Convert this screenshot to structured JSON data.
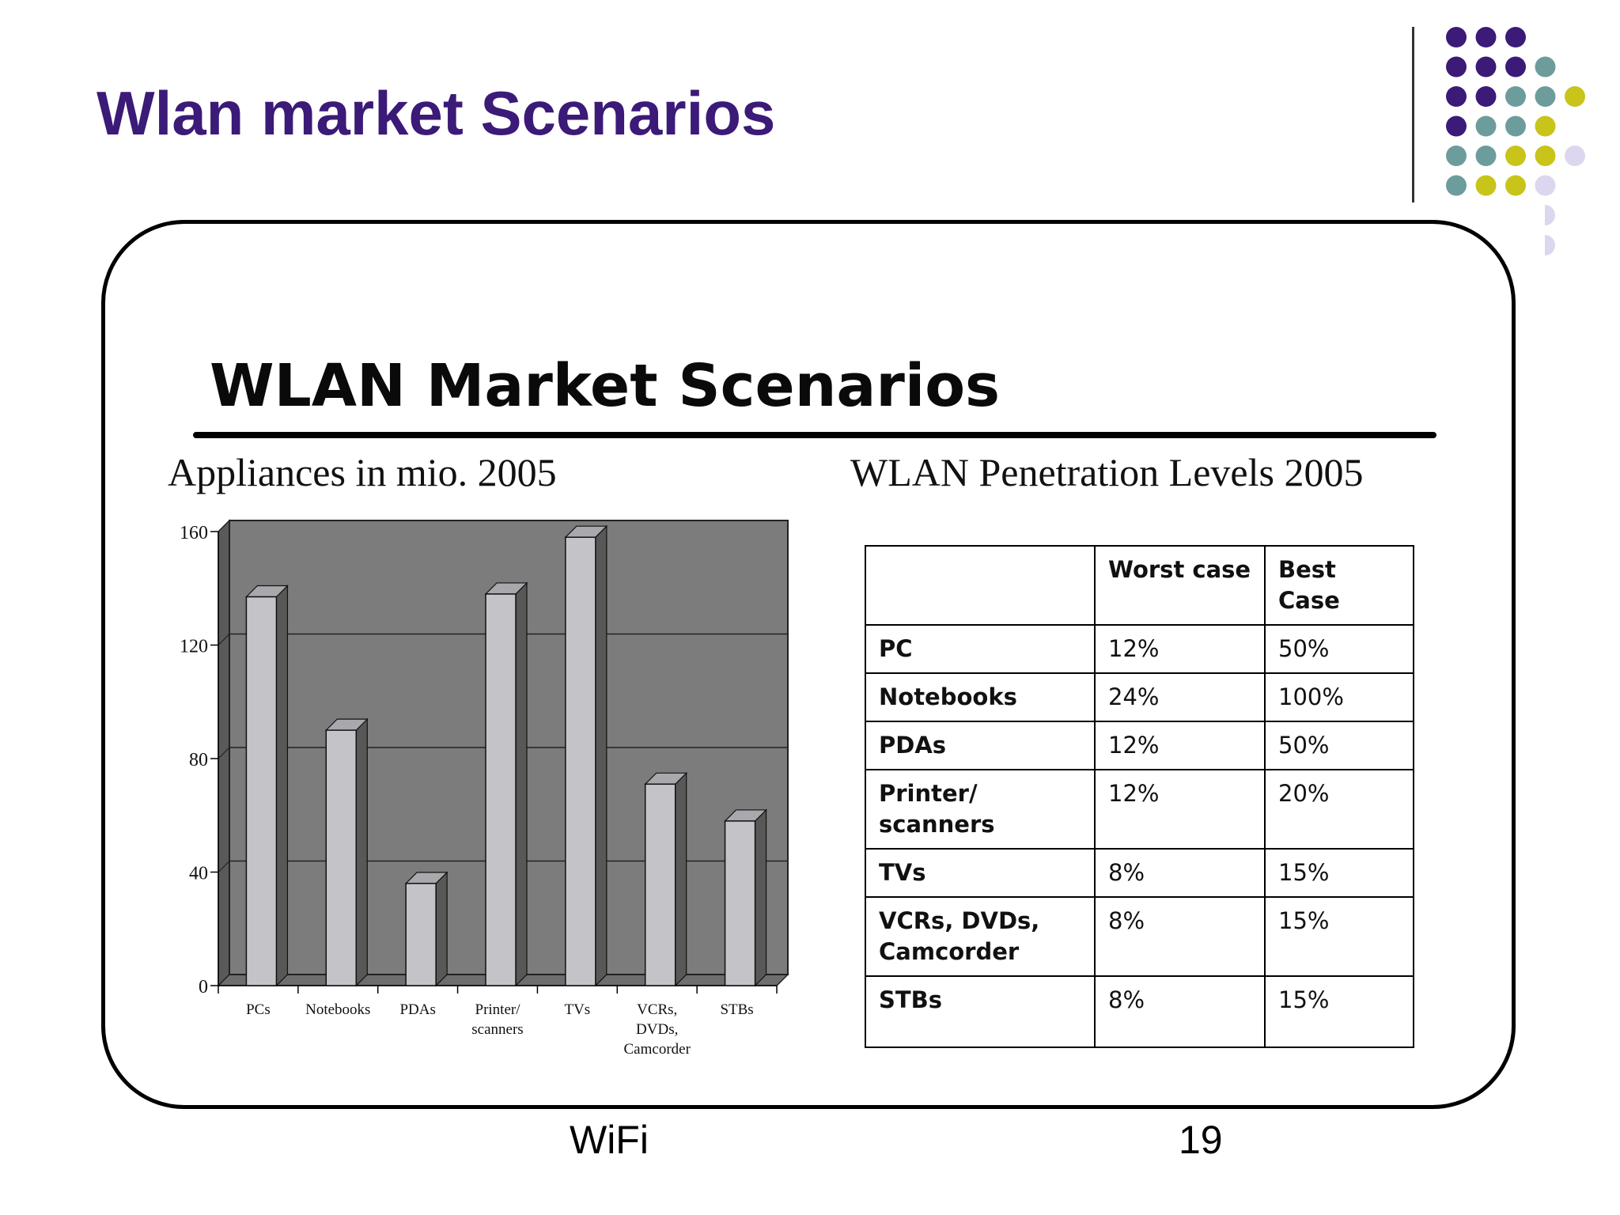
{
  "slide": {
    "title": "Wlan market Scenarios",
    "footer_left": "WiFi",
    "page_number": "19"
  },
  "figure": {
    "heading": "WLAN Market Scenarios",
    "left_subtitle": "Appliances in mio. 2005",
    "right_subtitle": "WLAN Penetration Levels 2005"
  },
  "theme": {
    "title_color": "#3b1a78",
    "dot_purple": "#3b1a78",
    "dot_teal": "#6d9c9c",
    "dot_olive": "#c8c41a",
    "dot_lavender": "#dcd7ee",
    "plot_bg": "#7c7c7c",
    "bar_face": "#c4c3c8"
  },
  "chart_data": [
    {
      "type": "bar",
      "title": "Appliances in mio. 2005",
      "categories": [
        "PCs",
        "Notebooks",
        "PDAs",
        "Printer/\nscanners",
        "TVs",
        "VCRs,\nDVDs,\nCamcorder",
        "STBs"
      ],
      "values": [
        137,
        90,
        36,
        138,
        158,
        71,
        58
      ],
      "ylim": [
        0,
        160
      ],
      "yticks": [
        "0",
        "40",
        "80",
        "120",
        "160"
      ],
      "grid": true,
      "style": "3d"
    },
    {
      "type": "table",
      "title": "WLAN Penetration Levels 2005",
      "columns": [
        "",
        "Worst case",
        "Best\nCase"
      ],
      "rows": [
        [
          "PC",
          "12%",
          "50%"
        ],
        [
          "Notebooks",
          "24%",
          "100%"
        ],
        [
          "PDAs",
          "12%",
          "50%"
        ],
        [
          "Printer/\nscanners",
          "12%",
          "20%"
        ],
        [
          "TVs",
          "8%",
          "15%"
        ],
        [
          "VCRs, DVDs,\nCamcorder",
          "8%",
          "15%"
        ],
        [
          "STBs",
          "8%",
          "15%"
        ]
      ]
    }
  ]
}
